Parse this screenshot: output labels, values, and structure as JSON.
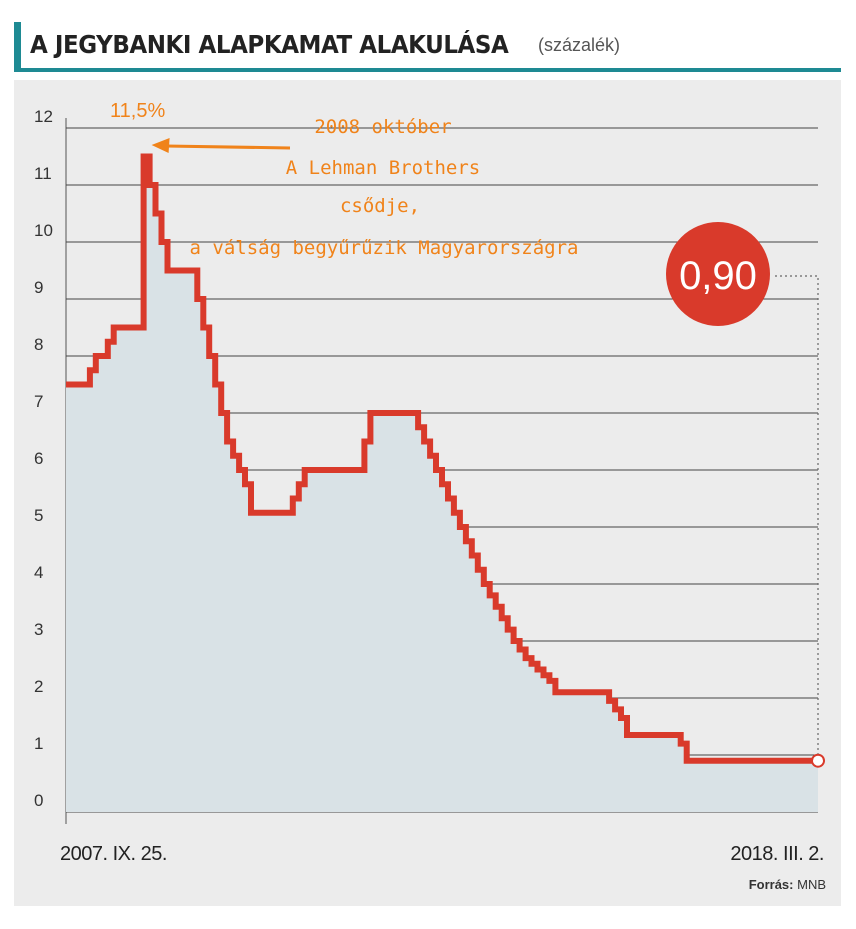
{
  "header": {
    "title": "A JEGYBANKI ALAPKAMAT ALAKULÁSA",
    "subtitle": "(százalék)"
  },
  "source": {
    "label": "Forrás:",
    "value": "MNB"
  },
  "chart_data": {
    "type": "area",
    "title": "A JEGYBANKI ALAPKAMAT ALAKULÁSA",
    "subtitle": "(százalék)",
    "xlabel": "",
    "ylabel": "",
    "ylim": [
      0,
      12
    ],
    "yticks": [
      0,
      1,
      2,
      3,
      4,
      5,
      6,
      7,
      8,
      9,
      10,
      11,
      12
    ],
    "grid": true,
    "step": true,
    "x_start_label": "2007. IX. 25.",
    "x_end_label": "2018. III. 2.",
    "x": [
      "2007-09",
      "2007-12",
      "2008-01",
      "2008-02",
      "2008-04",
      "2008-05",
      "2008-10",
      "2008-11",
      "2008-12",
      "2009-01",
      "2009-02",
      "2009-06",
      "2009-07",
      "2009-08",
      "2009-09",
      "2009-10",
      "2009-11",
      "2009-12",
      "2010-01",
      "2010-02",
      "2010-03",
      "2010-04",
      "2010-11",
      "2010-12",
      "2011-01",
      "2011-11",
      "2011-12",
      "2012-08",
      "2012-09",
      "2012-10",
      "2012-11",
      "2012-12",
      "2013-01",
      "2013-02",
      "2013-03",
      "2013-04",
      "2013-05",
      "2013-06",
      "2013-07",
      "2013-08",
      "2013-09",
      "2013-10",
      "2013-11",
      "2013-12",
      "2014-01",
      "2014-02",
      "2014-03",
      "2014-04",
      "2014-05",
      "2014-06",
      "2014-07",
      "2015-03",
      "2015-04",
      "2015-05",
      "2015-06",
      "2015-07",
      "2016-03",
      "2016-04",
      "2016-05",
      "2018-03"
    ],
    "values": [
      7.5,
      7.5,
      7.75,
      8.0,
      8.25,
      8.5,
      11.5,
      11.0,
      10.5,
      10.0,
      9.5,
      9.5,
      9.0,
      8.5,
      8.0,
      7.5,
      7.0,
      6.5,
      6.25,
      6.0,
      5.75,
      5.25,
      5.5,
      5.75,
      6.0,
      6.5,
      7.0,
      6.75,
      6.5,
      6.25,
      6.0,
      5.75,
      5.5,
      5.25,
      5.0,
      4.75,
      4.5,
      4.25,
      4.0,
      3.8,
      3.6,
      3.4,
      3.2,
      3.0,
      2.85,
      2.7,
      2.6,
      2.5,
      2.4,
      2.3,
      2.1,
      2.1,
      1.95,
      1.8,
      1.65,
      1.35,
      1.35,
      1.2,
      0.9,
      0.9
    ],
    "callout": {
      "value": "0,90"
    },
    "annotations": {
      "peak_label": "11,5%",
      "lines": [
        "2008 október",
        "A Lehman Brothers",
        "csődje,",
        "a válság begyűrűzik Magyarországra"
      ]
    },
    "colors": {
      "line": "#d93a2b",
      "area": "#d9e2e6",
      "panel": "#ececec",
      "grid": "#444444",
      "accent": "#1e8a93",
      "annotation": "#f0831a",
      "callout": "#d93a2b"
    }
  }
}
